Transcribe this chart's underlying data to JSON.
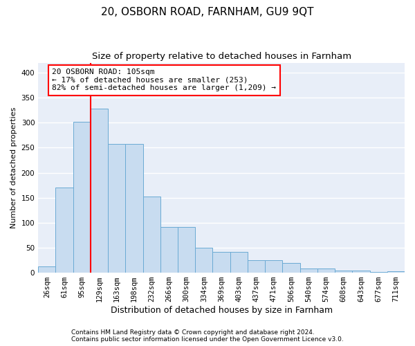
{
  "title1": "20, OSBORN ROAD, FARNHAM, GU9 9QT",
  "title2": "Size of property relative to detached houses in Farnham",
  "xlabel": "Distribution of detached houses by size in Farnham",
  "ylabel": "Number of detached properties",
  "footer1": "Contains HM Land Registry data © Crown copyright and database right 2024.",
  "footer2": "Contains public sector information licensed under the Open Government Licence v3.0.",
  "categories": [
    "26sqm",
    "61sqm",
    "95sqm",
    "129sqm",
    "163sqm",
    "198sqm",
    "232sqm",
    "266sqm",
    "300sqm",
    "334sqm",
    "369sqm",
    "403sqm",
    "437sqm",
    "471sqm",
    "506sqm",
    "540sqm",
    "574sqm",
    "608sqm",
    "643sqm",
    "677sqm",
    "711sqm"
  ],
  "values": [
    12,
    170,
    302,
    328,
    258,
    258,
    152,
    91,
    91,
    50,
    42,
    42,
    25,
    25,
    20,
    9,
    9,
    4,
    4,
    2,
    3
  ],
  "bar_color": "#c8dcf0",
  "bar_edge_color": "#6aaad4",
  "annotation_text_line1": "20 OSBORN ROAD: 105sqm",
  "annotation_text_line2": "← 17% of detached houses are smaller (253)",
  "annotation_text_line3": "82% of semi-detached houses are larger (1,209) →",
  "annotation_box_color": "white",
  "annotation_box_edge_color": "red",
  "vline_color": "red",
  "vline_x": 2.5,
  "ylim": [
    0,
    420
  ],
  "yticks": [
    0,
    50,
    100,
    150,
    200,
    250,
    300,
    350,
    400
  ],
  "bg_color": "#e8eef8",
  "grid_color": "white",
  "title1_fontsize": 11,
  "title2_fontsize": 9.5,
  "xlabel_fontsize": 9,
  "ylabel_fontsize": 8,
  "tick_fontsize": 7.5,
  "annotation_fontsize": 8,
  "footer_fontsize": 6.5
}
